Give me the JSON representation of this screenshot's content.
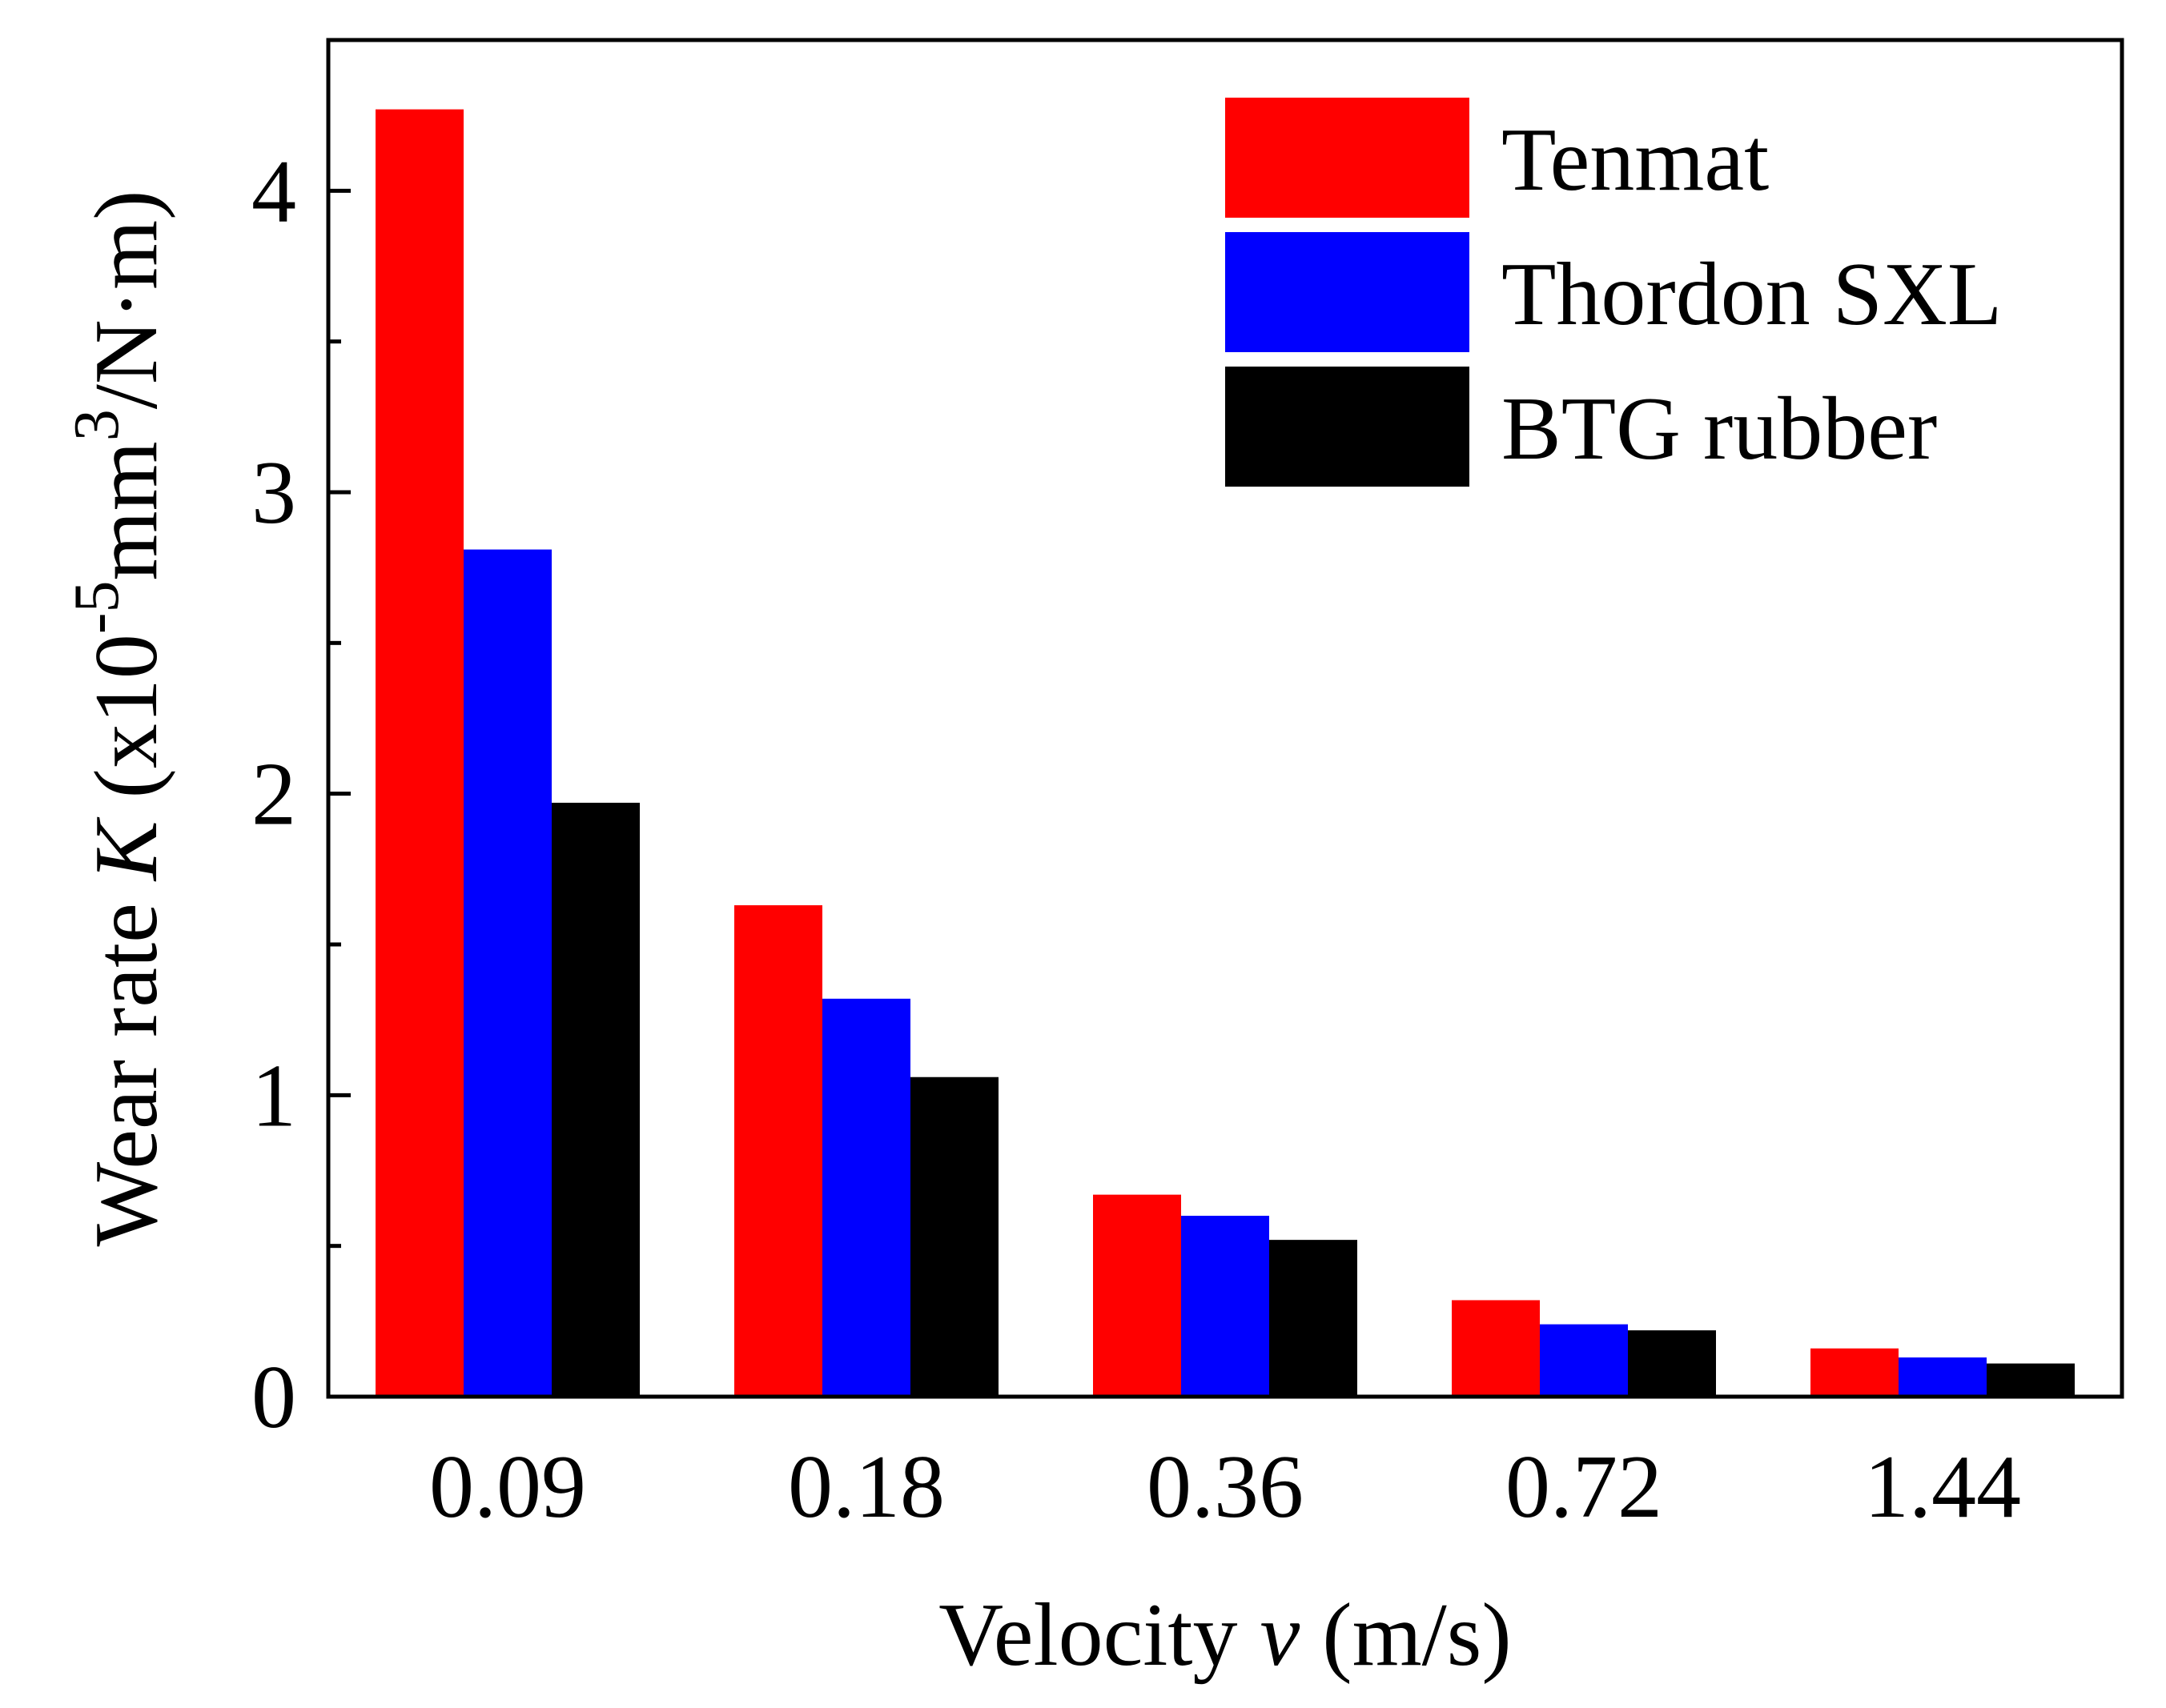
{
  "chart_data": {
    "type": "bar",
    "title": "",
    "xlabel": {
      "prefix": "Velocity ",
      "variable": "v",
      "suffix": " (m/s)"
    },
    "ylabel": {
      "prefix": "Wear rate ",
      "variable": "K",
      "unit_start": " (x10",
      "exponent": "-5",
      "unit_mid": "mm",
      "exponent2": "3",
      "unit_end": "/N·m)"
    },
    "categories": [
      "0.09",
      "0.18",
      "0.36",
      "0.72",
      "1.44"
    ],
    "ylim": [
      0,
      4.5
    ],
    "yticks": [
      0,
      1,
      2,
      3,
      4
    ],
    "yticks_minor": [
      0.5,
      1.5,
      2.5,
      3.5
    ],
    "grid": false,
    "legend_position": "top-right",
    "series": [
      {
        "name": "Tenmat",
        "color": "#ff0000",
        "values": [
          4.27,
          1.63,
          0.67,
          0.32,
          0.16
        ]
      },
      {
        "name": "Thordon SXL",
        "color": "#0000ff",
        "values": [
          2.81,
          1.32,
          0.6,
          0.24,
          0.13
        ]
      },
      {
        "name": "BTG rubber",
        "color": "#000000",
        "values": [
          1.97,
          1.06,
          0.52,
          0.22,
          0.11
        ]
      }
    ]
  }
}
